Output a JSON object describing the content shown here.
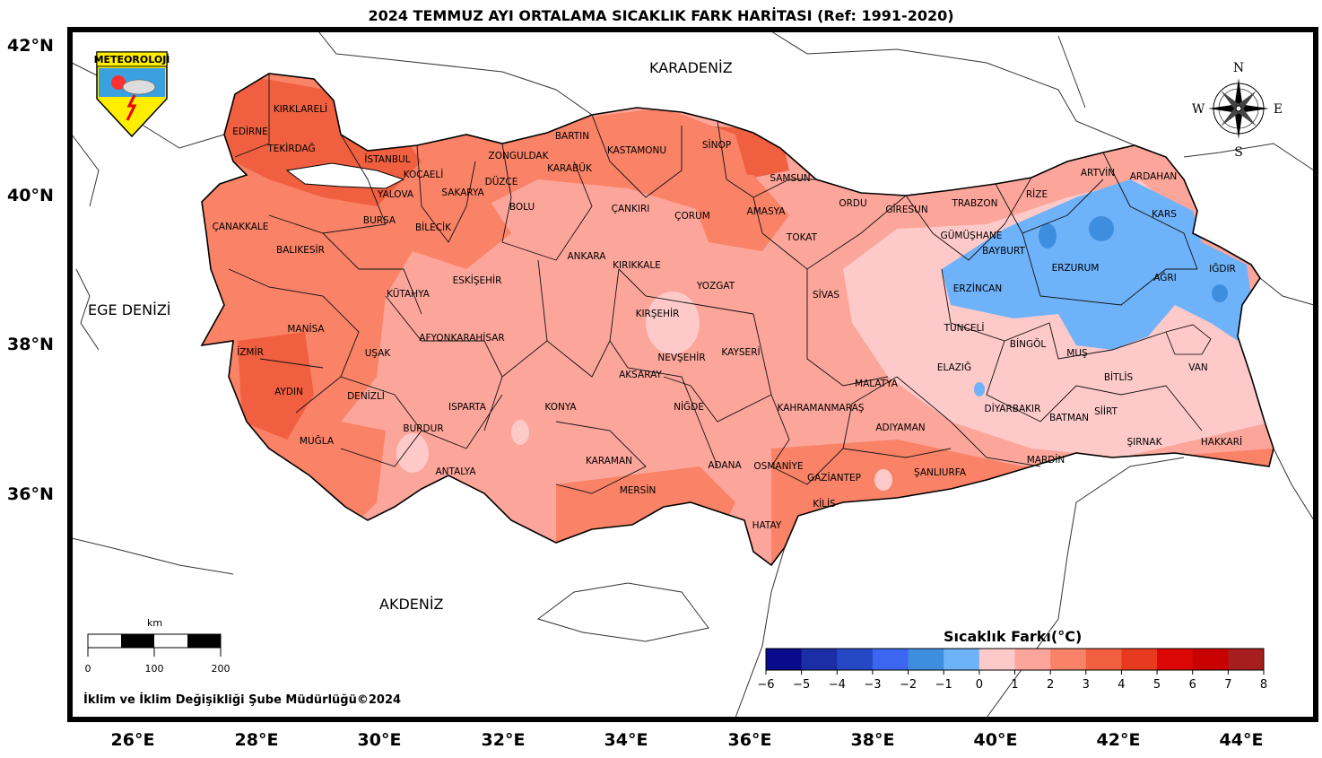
{
  "title": "2024 TEMMUZ AYI ORTALAMA SICAKLIK FARK HARİTASI (Ref: 1991-2020)",
  "latitudes": [
    "42°N",
    "40°N",
    "38°N",
    "36°N"
  ],
  "longitudes": [
    "26°E",
    "28°E",
    "30°E",
    "32°E",
    "34°E",
    "36°E",
    "38°E",
    "40°E",
    "42°E",
    "44°E"
  ],
  "seas": {
    "black_sea": "KARADENİZ",
    "aegean": "EGE DENİZİ",
    "mediterranean": "AKDENİZ"
  },
  "logo": {
    "text": "METEOROLOJİ"
  },
  "compass": {
    "n": "N",
    "s": "S",
    "e": "E",
    "w": "W"
  },
  "scale_bar": {
    "unit": "km",
    "labels": [
      "0",
      "100",
      "200"
    ]
  },
  "credit": "İklim ve İklim Değişikliği Şube Müdürlüğü©2024",
  "legend": {
    "title": "Sıcaklık Farkı(°C)",
    "ticks": [
      "−6",
      "−5",
      "−4",
      "−3",
      "−2",
      "−1",
      "0",
      "1",
      "2",
      "3",
      "4",
      "5",
      "6",
      "7",
      "8"
    ],
    "colors": [
      "#0a0a8c",
      "#1c2ea6",
      "#2448c4",
      "#3a66f2",
      "#3e8ee0",
      "#6eb2fa",
      "#fec9c9",
      "#fca59a",
      "#f98267",
      "#f06040",
      "#e83a1e",
      "#dc0808",
      "#c80000",
      "#a81e1e"
    ]
  },
  "provinces": {
    "kirklareli": "KIRKLARELİ",
    "edirne": "EDİRNE",
    "tekirdag": "TEKİRDAĞ",
    "istanbul": "İSTANBUL",
    "kocaeli": "KOCAELİ",
    "yalova": "YALOVA",
    "sakarya": "SAKARYA",
    "duzce": "DÜZCE",
    "zonguldak": "ZONGULDAK",
    "bartin": "BARTIN",
    "karabuk": "KARABÜK",
    "kastamonu": "KASTAMONU",
    "sinop": "SİNOP",
    "samsun": "SAMSUN",
    "ordu": "ORDU",
    "giresun": "GİRESUN",
    "trabzon": "TRABZON",
    "rize": "RİZE",
    "artvin": "ARTVİN",
    "ardahan": "ARDAHAN",
    "kars": "KARS",
    "igdir": "IĞDIR",
    "agri": "AĞRI",
    "erzurum": "ERZURUM",
    "bayburt": "BAYBURT",
    "gumushane": "GÜMÜŞHANE",
    "erzincan": "ERZİNCAN",
    "tunceli": "TUNCELİ",
    "bingol": "BİNGÖL",
    "mus": "MUŞ",
    "van": "VAN",
    "bitlis": "BİTLİS",
    "elazig": "ELAZIĞ",
    "malatya": "MALATYA",
    "diyarbakir": "DİYARBAKIR",
    "batman": "BATMAN",
    "siirt": "SİİRT",
    "sirnak": "ŞIRNAK",
    "hakkari": "HAKKARİ",
    "mardin": "MARDİN",
    "sanliurfa": "ŞANLIURFA",
    "adiyaman": "ADIYAMAN",
    "kahramanmaras": "KAHRAMANMARAŞ",
    "gaziantep": "GAZİANTEP",
    "kilis": "KİLİS",
    "hatay": "HATAY",
    "osmaniye": "OSMANİYE",
    "adana": "ADANA",
    "mersin": "MERSİN",
    "karaman": "KARAMAN",
    "konya": "KONYA",
    "nigde": "NİĞDE",
    "aksaray": "AKSARAY",
    "nevsehir": "NEVŞEHİR",
    "kayseri": "KAYSERİ",
    "kirsehir": "KIRŞEHİR",
    "yozgat": "YOZGAT",
    "sivas": "SİVAS",
    "tokat": "TOKAT",
    "amasya": "AMASYA",
    "corum": "ÇORUM",
    "cankiri": "ÇANKIRI",
    "kirikkale": "KIRIKKALE",
    "ankara": "ANKARA",
    "bolu": "BOLU",
    "eskisehir": "ESKİŞEHİR",
    "bilecik": "BİLECİK",
    "bursa": "BURSA",
    "canakkale": "ÇANAKKALE",
    "balikesir": "BALIKESİR",
    "kutahya": "KÜTAHYA",
    "afyonkarahisar": "AFYONKARAHİSAR",
    "usak": "UŞAK",
    "manisa": "MANİSA",
    "izmir": "İZMİR",
    "aydin": "AYDIN",
    "denizli": "DENİZLİ",
    "mugla": "MUĞLA",
    "burdur": "BURDUR",
    "isparta": "ISPARTA",
    "antalya": "ANTALYA"
  }
}
